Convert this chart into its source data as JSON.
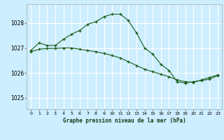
{
  "title": "Graphe pression niveau de la mer (hPa)",
  "bg_color": "#cceeff",
  "grid_color": "#ffffff",
  "line_color": "#1a5c1a",
  "marker_color": "#1a5c1a",
  "ylim": [
    1024.55,
    1028.75
  ],
  "xlim": [
    -0.5,
    23.5
  ],
  "yticks": [
    1025,
    1026,
    1027,
    1028
  ],
  "xticks": [
    0,
    1,
    2,
    3,
    4,
    5,
    6,
    7,
    8,
    9,
    10,
    11,
    12,
    13,
    14,
    15,
    16,
    17,
    18,
    19,
    20,
    21,
    22,
    23
  ],
  "series1_x": [
    0,
    1,
    2,
    3,
    4,
    5,
    6,
    7,
    8,
    9,
    10,
    11,
    12,
    13,
    14,
    15,
    16,
    17,
    18,
    19,
    20,
    21,
    22,
    23
  ],
  "series1_y": [
    1026.9,
    1027.2,
    1027.1,
    1027.1,
    1027.35,
    1027.55,
    1027.7,
    1027.95,
    1028.05,
    1028.25,
    1028.35,
    1028.35,
    1028.1,
    1027.6,
    1027.0,
    1026.75,
    1026.35,
    1026.1,
    1025.65,
    1025.6,
    1025.65,
    1025.7,
    1025.75,
    1025.9
  ],
  "series2_x": [
    0,
    1,
    2,
    3,
    4,
    5,
    6,
    7,
    8,
    9,
    10,
    11,
    12,
    13,
    14,
    15,
    16,
    17,
    18,
    19,
    20,
    21,
    22,
    23
  ],
  "series2_y": [
    1026.85,
    1026.95,
    1026.98,
    1026.98,
    1027.0,
    1027.0,
    1026.95,
    1026.9,
    1026.85,
    1026.78,
    1026.7,
    1026.6,
    1026.45,
    1026.3,
    1026.15,
    1026.05,
    1025.95,
    1025.85,
    1025.72,
    1025.65,
    1025.62,
    1025.72,
    1025.82,
    1025.92
  ]
}
